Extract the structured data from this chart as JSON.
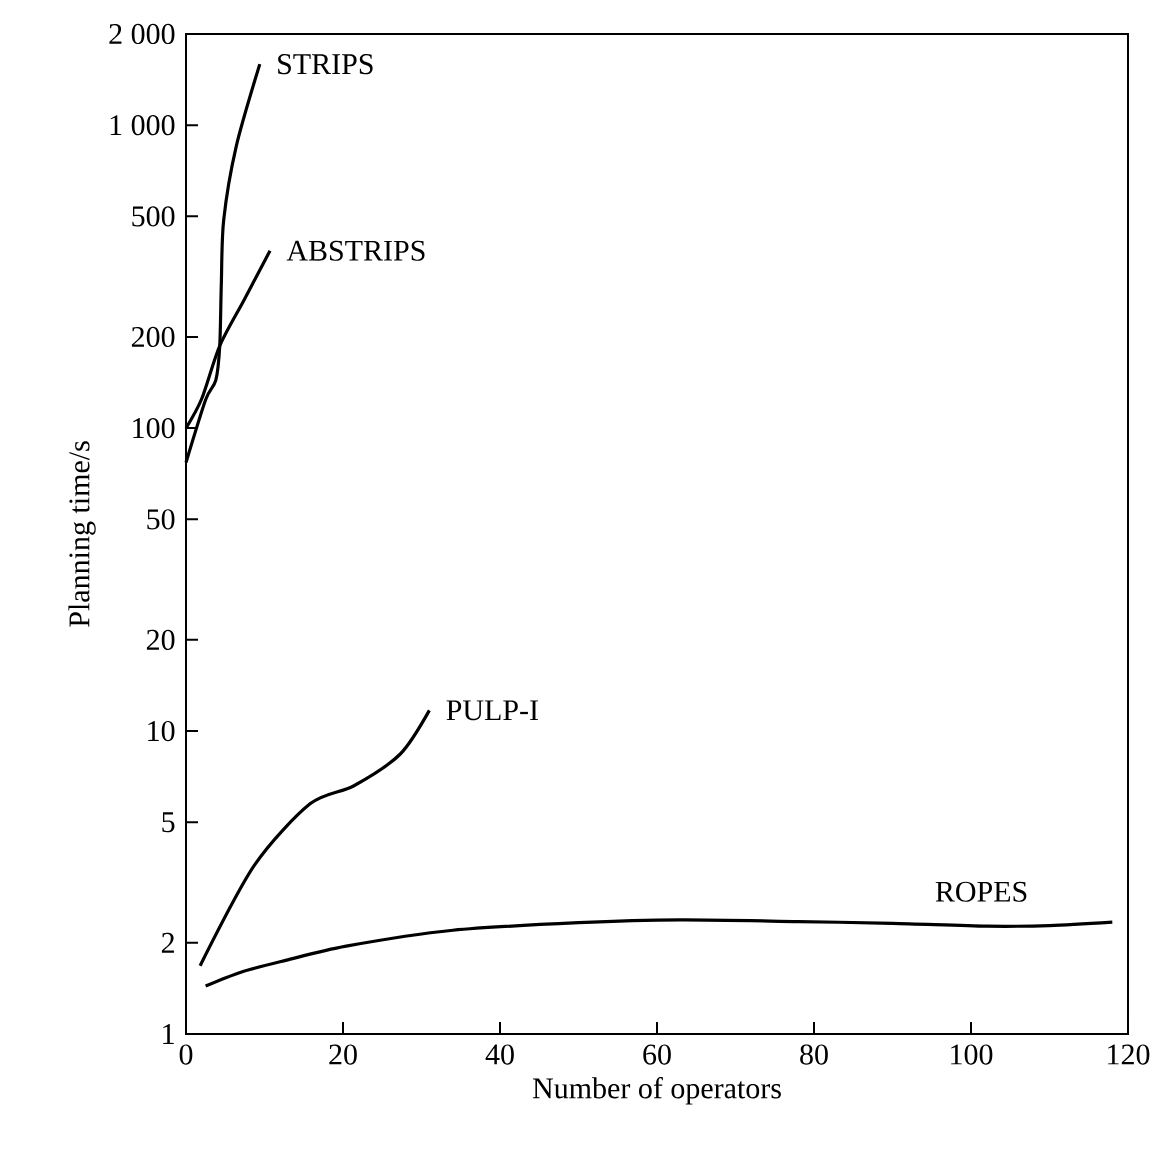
{
  "chart_data": {
    "type": "line",
    "xlabel": "Number of operators",
    "ylabel": "Planning time/s",
    "log": "y",
    "grid": false,
    "legend": false,
    "marker": "none",
    "line_style": "solid",
    "xlim": [
      0,
      120
    ],
    "xticks": [
      0,
      20,
      40,
      60,
      80,
      100,
      120
    ],
    "ylim": [
      1,
      2000
    ],
    "yticks": [
      1,
      2,
      5,
      10,
      20,
      50,
      100,
      200,
      500,
      {
        "value": 1000,
        "label": "1 000"
      },
      {
        "value": 2000,
        "label": "2 000"
      }
    ],
    "series": [
      {
        "name": "STRIPS",
        "color": "#000000",
        "x": [
          0,
          2.5,
          3.8,
          4.3,
          4.5,
          4.8,
          6.4,
          9.4
        ],
        "values": [
          77,
          124,
          144,
          187,
          300,
          486,
          851,
          1590
        ]
      },
      {
        "name": "ABSTRIPS",
        "color": "#000000",
        "x": [
          0,
          2,
          4.3,
          7.4,
          10.7
        ],
        "values": [
          100,
          125,
          187,
          265,
          385
        ]
      },
      {
        "name": "PULP-I",
        "color": "#000000",
        "x": [
          1.8,
          8.7,
          15.8,
          21.4,
          27.3,
          31
        ],
        "values": [
          1.68,
          3.6,
          5.75,
          6.6,
          8.4,
          11.7
        ]
      },
      {
        "name": "ROPES",
        "color": "#000000",
        "x": [
          2.5,
          7,
          12.7,
          20.4,
          34,
          50,
          63,
          78,
          90,
          102,
          110,
          118
        ],
        "values": [
          1.44,
          1.6,
          1.75,
          1.95,
          2.2,
          2.33,
          2.38,
          2.35,
          2.32,
          2.27,
          2.28,
          2.34
        ]
      }
    ]
  }
}
